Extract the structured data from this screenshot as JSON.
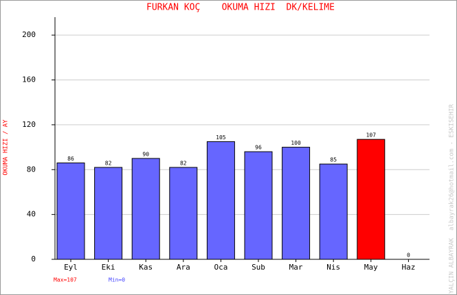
{
  "chart_data": {
    "type": "bar",
    "title": "FURKAN KOÇ    OKUMA HIZI  DK/KELIME",
    "y_label": "OKUMA HIZI / AY",
    "categories": [
      "Eyl",
      "Eki",
      "Kas",
      "Ara",
      "Oca",
      "Sub",
      "Mar",
      "Nis",
      "May",
      "Haz"
    ],
    "values": [
      86,
      82,
      90,
      82,
      105,
      96,
      100,
      85,
      107,
      0
    ],
    "colors": [
      "#6666ff",
      "#6666ff",
      "#6666ff",
      "#6666ff",
      "#6666ff",
      "#6666ff",
      "#6666ff",
      "#6666ff",
      "#ff0000",
      "#6666ff"
    ],
    "ylim": [
      0,
      216
    ],
    "yticks": [
      0,
      40,
      80,
      120,
      160,
      200
    ],
    "grid": true,
    "max_label": "Max=107",
    "min_label": "Min=0",
    "credit": "YALÇIN ALBAYRAK  albayrak26@hotmail.com - ESKISEHIR"
  }
}
